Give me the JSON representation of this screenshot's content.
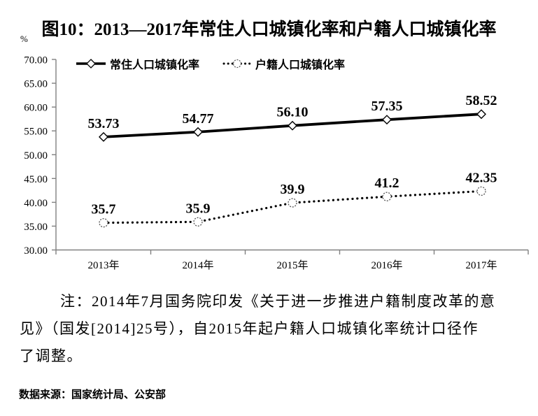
{
  "unit_label": "%",
  "note": {
    "lines": [
      "注：2014年7月国务院印发《关于进一步推进户籍制度改革的意",
      "见》（国发[2014]25号），自2015年起户籍人口城镇化率统计口径作",
      "了调整。"
    ]
  },
  "source": "数据来源：国家统计局、公安部",
  "chart_data": {
    "type": "line",
    "title": "图10：2013—2017年常住人口城镇化率和户籍人口城镇化率",
    "categories": [
      "2013年",
      "2014年",
      "2015年",
      "2016年",
      "2017年"
    ],
    "xlabel": "",
    "ylabel": "%",
    "ylim": [
      30,
      70
    ],
    "ytick_step": 5,
    "grid": false,
    "legend_position": "top-left-inside",
    "line_color": "#000000",
    "axis_color": "#808080",
    "series": [
      {
        "name": "常住人口城镇化率",
        "style": "solid",
        "marker": "diamond",
        "values": [
          53.73,
          54.77,
          56.1,
          57.35,
          58.52
        ],
        "labels": [
          "53.73",
          "54.77",
          "56.10",
          "57.35",
          "58.52"
        ]
      },
      {
        "name": "户籍人口城镇化率",
        "style": "dotted",
        "marker": "circle",
        "values": [
          35.7,
          35.9,
          39.9,
          41.2,
          42.35
        ],
        "labels": [
          "35.7",
          "35.9",
          "39.9",
          "41.2",
          "42.35"
        ]
      }
    ]
  }
}
